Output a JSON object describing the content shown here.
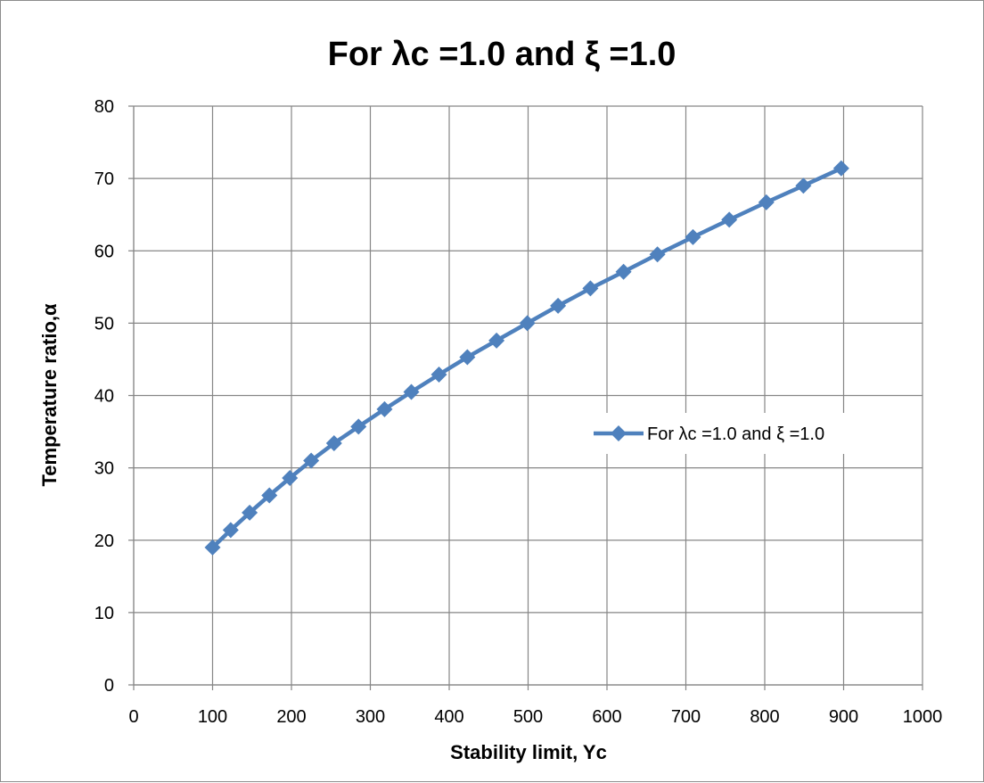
{
  "chart_data": {
    "type": "line",
    "title": "For λc =1.0 and ξ =1.0",
    "xlabel": "Stability limit, Yc",
    "ylabel": "Temperature ratio,α",
    "xlim": [
      0,
      1000
    ],
    "ylim": [
      0,
      80
    ],
    "xticks": [
      0,
      100,
      200,
      300,
      400,
      500,
      600,
      700,
      800,
      900,
      1000
    ],
    "yticks": [
      0,
      10,
      20,
      30,
      40,
      50,
      60,
      70,
      80
    ],
    "xtick_labels": [
      "0",
      "100",
      "200",
      "300",
      "400",
      "500",
      "600",
      "700",
      "800",
      "900",
      "1000"
    ],
    "ytick_labels": [
      "0",
      "10",
      "20",
      "30",
      "40",
      "50",
      "60",
      "70",
      "80"
    ],
    "grid": true,
    "legend_position": "center-right",
    "series": [
      {
        "name": "For λc =1.0 and ξ =1.0",
        "color": "#4f81bd",
        "marker": "diamond",
        "x": [
          100,
          123,
          147,
          172,
          198,
          225,
          254,
          285,
          318,
          352,
          387,
          423,
          460,
          499,
          538,
          579,
          621,
          664,
          709,
          755,
          802,
          849,
          897
        ],
        "y": [
          19.0,
          21.4,
          23.8,
          26.2,
          28.6,
          31.0,
          33.4,
          35.7,
          38.1,
          40.5,
          42.9,
          45.3,
          47.6,
          50.0,
          52.4,
          54.8,
          57.1,
          59.5,
          61.9,
          64.3,
          66.7,
          69.0,
          71.4
        ]
      }
    ]
  }
}
